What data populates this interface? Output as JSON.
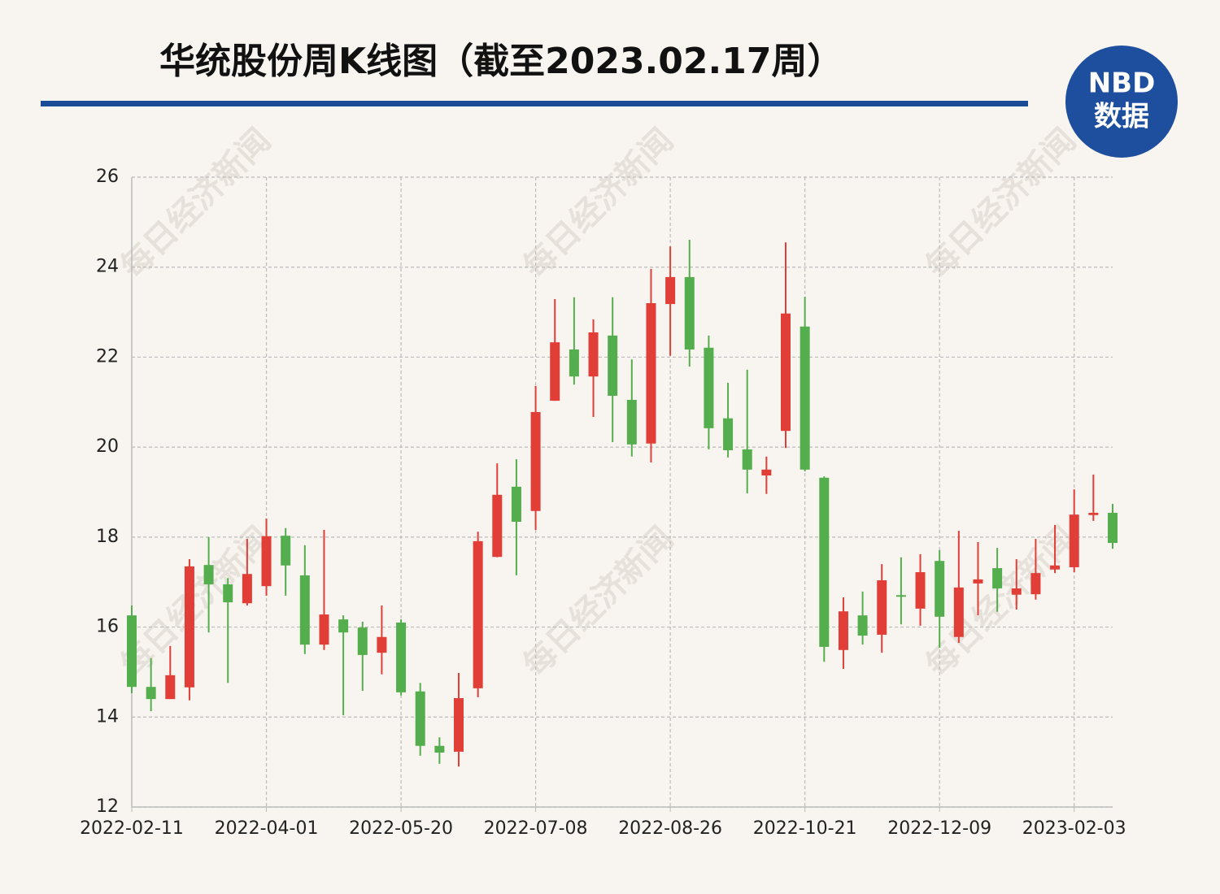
{
  "chart_data": {
    "type": "candlestick",
    "title": "华统股份周K线图（截至2023.02.17周）",
    "logo": {
      "top": "NBD",
      "bottom": "数据"
    },
    "watermark": "每日经济新闻",
    "up_color": "#e03e36",
    "down_color": "#55ae4d",
    "categories": [
      "2022-02-11",
      null,
      null,
      null,
      null,
      null,
      null,
      "2022-04-01",
      null,
      null,
      null,
      null,
      null,
      null,
      "2022-05-20",
      null,
      null,
      null,
      null,
      null,
      null,
      "2022-07-08",
      null,
      null,
      null,
      null,
      null,
      null,
      "2022-08-26",
      null,
      null,
      null,
      null,
      null,
      null,
      "2022-10-21",
      null,
      null,
      null,
      null,
      null,
      null,
      "2022-12-09",
      null,
      null,
      null,
      null,
      null,
      null,
      "2023-02-03",
      null,
      null
    ],
    "open": [
      16.26,
      14.67,
      14.4,
      14.66,
      17.38,
      16.95,
      16.53,
      16.91,
      18.03,
      17.15,
      15.61,
      16.17,
      15.99,
      15.43,
      16.1,
      14.57,
      13.36,
      13.23,
      14.64,
      17.56,
      19.12,
      18.58,
      21.03,
      22.17,
      21.57,
      22.48,
      21.05,
      20.08,
      23.18,
      23.78,
      22.21,
      20.64,
      19.95,
      19.37,
      20.36,
      22.68,
      19.32,
      15.49,
      16.26,
      15.83,
      16.71,
      16.41,
      17.47,
      15.78,
      16.97,
      17.31,
      16.72,
      16.73,
      17.28,
      17.33,
      18.49,
      18.54
    ],
    "high": [
      16.48,
      15.31,
      15.58,
      17.51,
      18.0,
      17.09,
      17.96,
      18.41,
      18.2,
      17.82,
      18.16,
      16.26,
      16.12,
      16.48,
      16.17,
      14.76,
      13.55,
      14.98,
      18.12,
      19.64,
      19.73,
      21.36,
      23.29,
      23.33,
      22.84,
      23.33,
      21.95,
      23.96,
      24.46,
      24.61,
      22.48,
      21.43,
      21.72,
      19.79,
      24.55,
      23.34,
      19.35,
      16.66,
      16.79,
      17.4,
      17.55,
      17.62,
      17.71,
      18.14,
      17.89,
      17.76,
      17.51,
      17.96,
      18.27,
      19.06,
      19.39,
      18.74
    ],
    "low": [
      14.53,
      14.13,
      14.4,
      14.37,
      15.88,
      14.76,
      16.48,
      16.7,
      16.7,
      15.4,
      15.49,
      14.04,
      14.58,
      14.95,
      14.48,
      13.14,
      12.96,
      12.9,
      14.44,
      17.55,
      17.15,
      18.16,
      21.03,
      21.39,
      20.67,
      20.11,
      19.79,
      19.66,
      22.03,
      21.79,
      19.95,
      19.77,
      18.97,
      18.96,
      19.98,
      19.46,
      15.23,
      15.07,
      15.61,
      15.43,
      16.06,
      16.03,
      15.54,
      15.65,
      16.26,
      16.34,
      16.39,
      16.61,
      17.2,
      17.22,
      18.36,
      17.74
    ],
    "close": [
      14.67,
      14.4,
      14.93,
      17.35,
      16.95,
      16.55,
      17.18,
      18.02,
      17.37,
      15.61,
      16.28,
      15.88,
      15.38,
      15.78,
      14.55,
      13.36,
      13.21,
      14.42,
      17.91,
      18.94,
      18.34,
      20.78,
      22.33,
      21.57,
      22.55,
      21.14,
      20.06,
      23.2,
      23.78,
      22.17,
      20.42,
      19.93,
      19.5,
      19.5,
      22.97,
      19.5,
      15.56,
      16.35,
      15.81,
      17.04,
      16.69,
      17.22,
      16.23,
      16.88,
      17.06,
      16.86,
      16.86,
      17.2,
      17.37,
      18.5,
      18.54,
      17.87
    ],
    "ylim": [
      12,
      26
    ],
    "yticks": [
      12,
      14,
      16,
      18,
      20,
      22,
      24,
      26
    ],
    "grid": true
  }
}
